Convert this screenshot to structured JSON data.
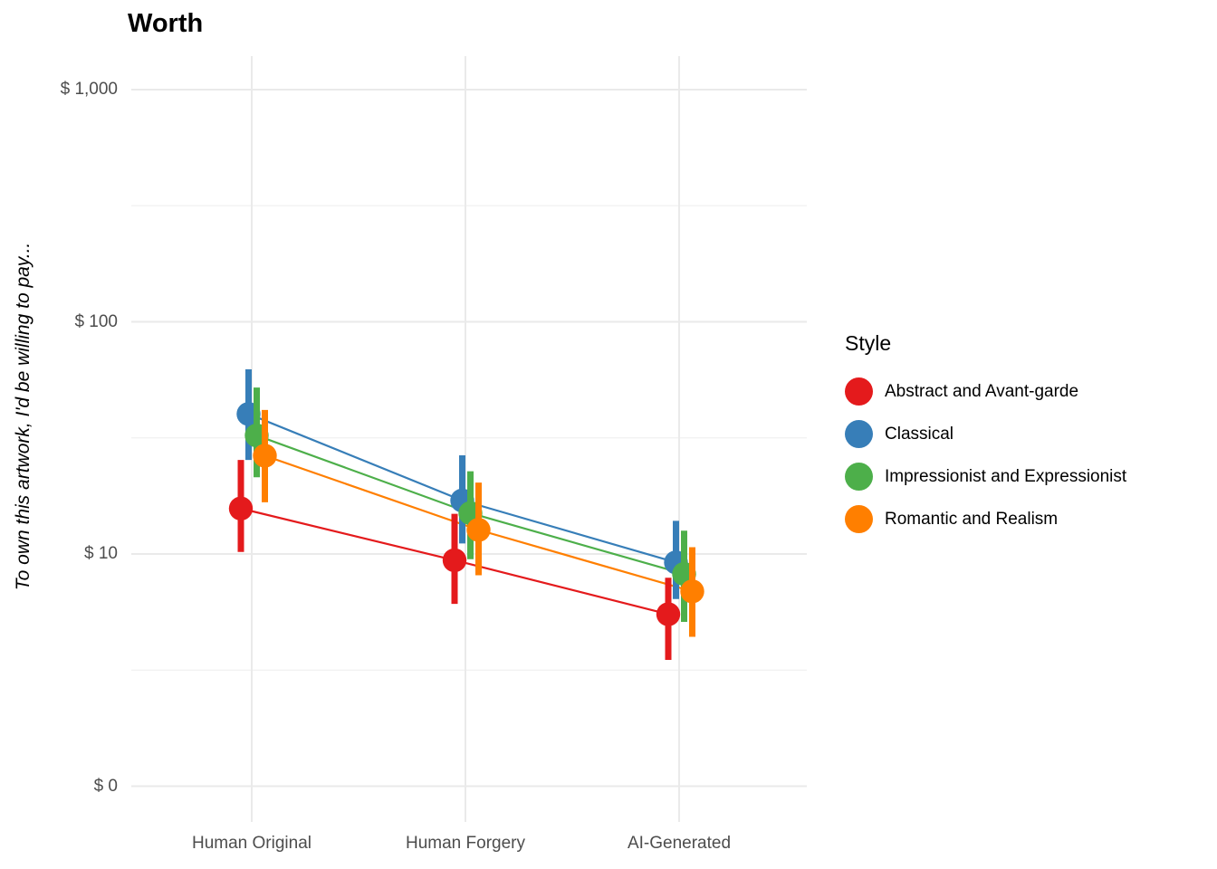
{
  "title": "Worth",
  "y_axis": {
    "title": "To own this artwork, I'd be willing to pay...",
    "tick_labels": [
      "$ 0",
      "$ 10",
      "$ 100",
      "$ 1,000"
    ]
  },
  "x_axis": {
    "tick_labels": [
      "Human Original",
      "Human Forgery",
      "AI-Generated"
    ]
  },
  "legend": {
    "title": "Style",
    "entries": [
      {
        "label": "Abstract and Avant-garde",
        "color": "#E41A1C"
      },
      {
        "label": "Classical",
        "color": "#377EB8"
      },
      {
        "label": "Impressionist and Expressionist",
        "color": "#4DAF4A"
      },
      {
        "label": "Romantic and Realism",
        "color": "#FF7F00"
      }
    ]
  },
  "colors": {
    "grid_major": "#EAEAEA",
    "grid_minor": "#F0F0F0",
    "tick_text": "#4D4D4D"
  },
  "chart_data": {
    "type": "scatter",
    "subtype": "pointrange_dodged",
    "title": "Worth",
    "xlabel": "",
    "ylabel": "To own this artwork, I'd be willing to pay...",
    "categories": [
      "Human Original",
      "Human Forgery",
      "AI-Generated"
    ],
    "y_scale": "pseudo-log10",
    "y_ticks": [
      0,
      10,
      100,
      1000
    ],
    "y_tick_labels": [
      "$ 0",
      "$ 10",
      "$ 100",
      "$ 1,000"
    ],
    "grid": true,
    "legend_position": "right",
    "legend_title": "Style",
    "series": [
      {
        "name": "Abstract and Avant-garde",
        "color": "#E41A1C",
        "values": [
          15.7,
          9.4,
          5.5
        ],
        "ci_low": [
          10.2,
          6.1,
          3.5
        ],
        "ci_high": [
          25.4,
          14.9,
          7.9
        ]
      },
      {
        "name": "Classical",
        "color": "#377EB8",
        "values": [
          40.1,
          17.0,
          9.2
        ],
        "ci_low": [
          25.4,
          11.1,
          6.4
        ],
        "ci_high": [
          62.4,
          26.6,
          13.9
        ]
      },
      {
        "name": "Impressionist and Expressionist",
        "color": "#4DAF4A",
        "values": [
          32.4,
          15.0,
          8.2
        ],
        "ci_low": [
          21.4,
          9.5,
          5.1
        ],
        "ci_high": [
          52.1,
          22.7,
          12.6
        ]
      },
      {
        "name": "Romantic and Realism",
        "color": "#FF7F00",
        "values": [
          26.5,
          12.7,
          6.9
        ],
        "ci_low": [
          16.7,
          8.1,
          4.4
        ],
        "ci_high": [
          41.7,
          20.3,
          10.7
        ]
      }
    ]
  }
}
